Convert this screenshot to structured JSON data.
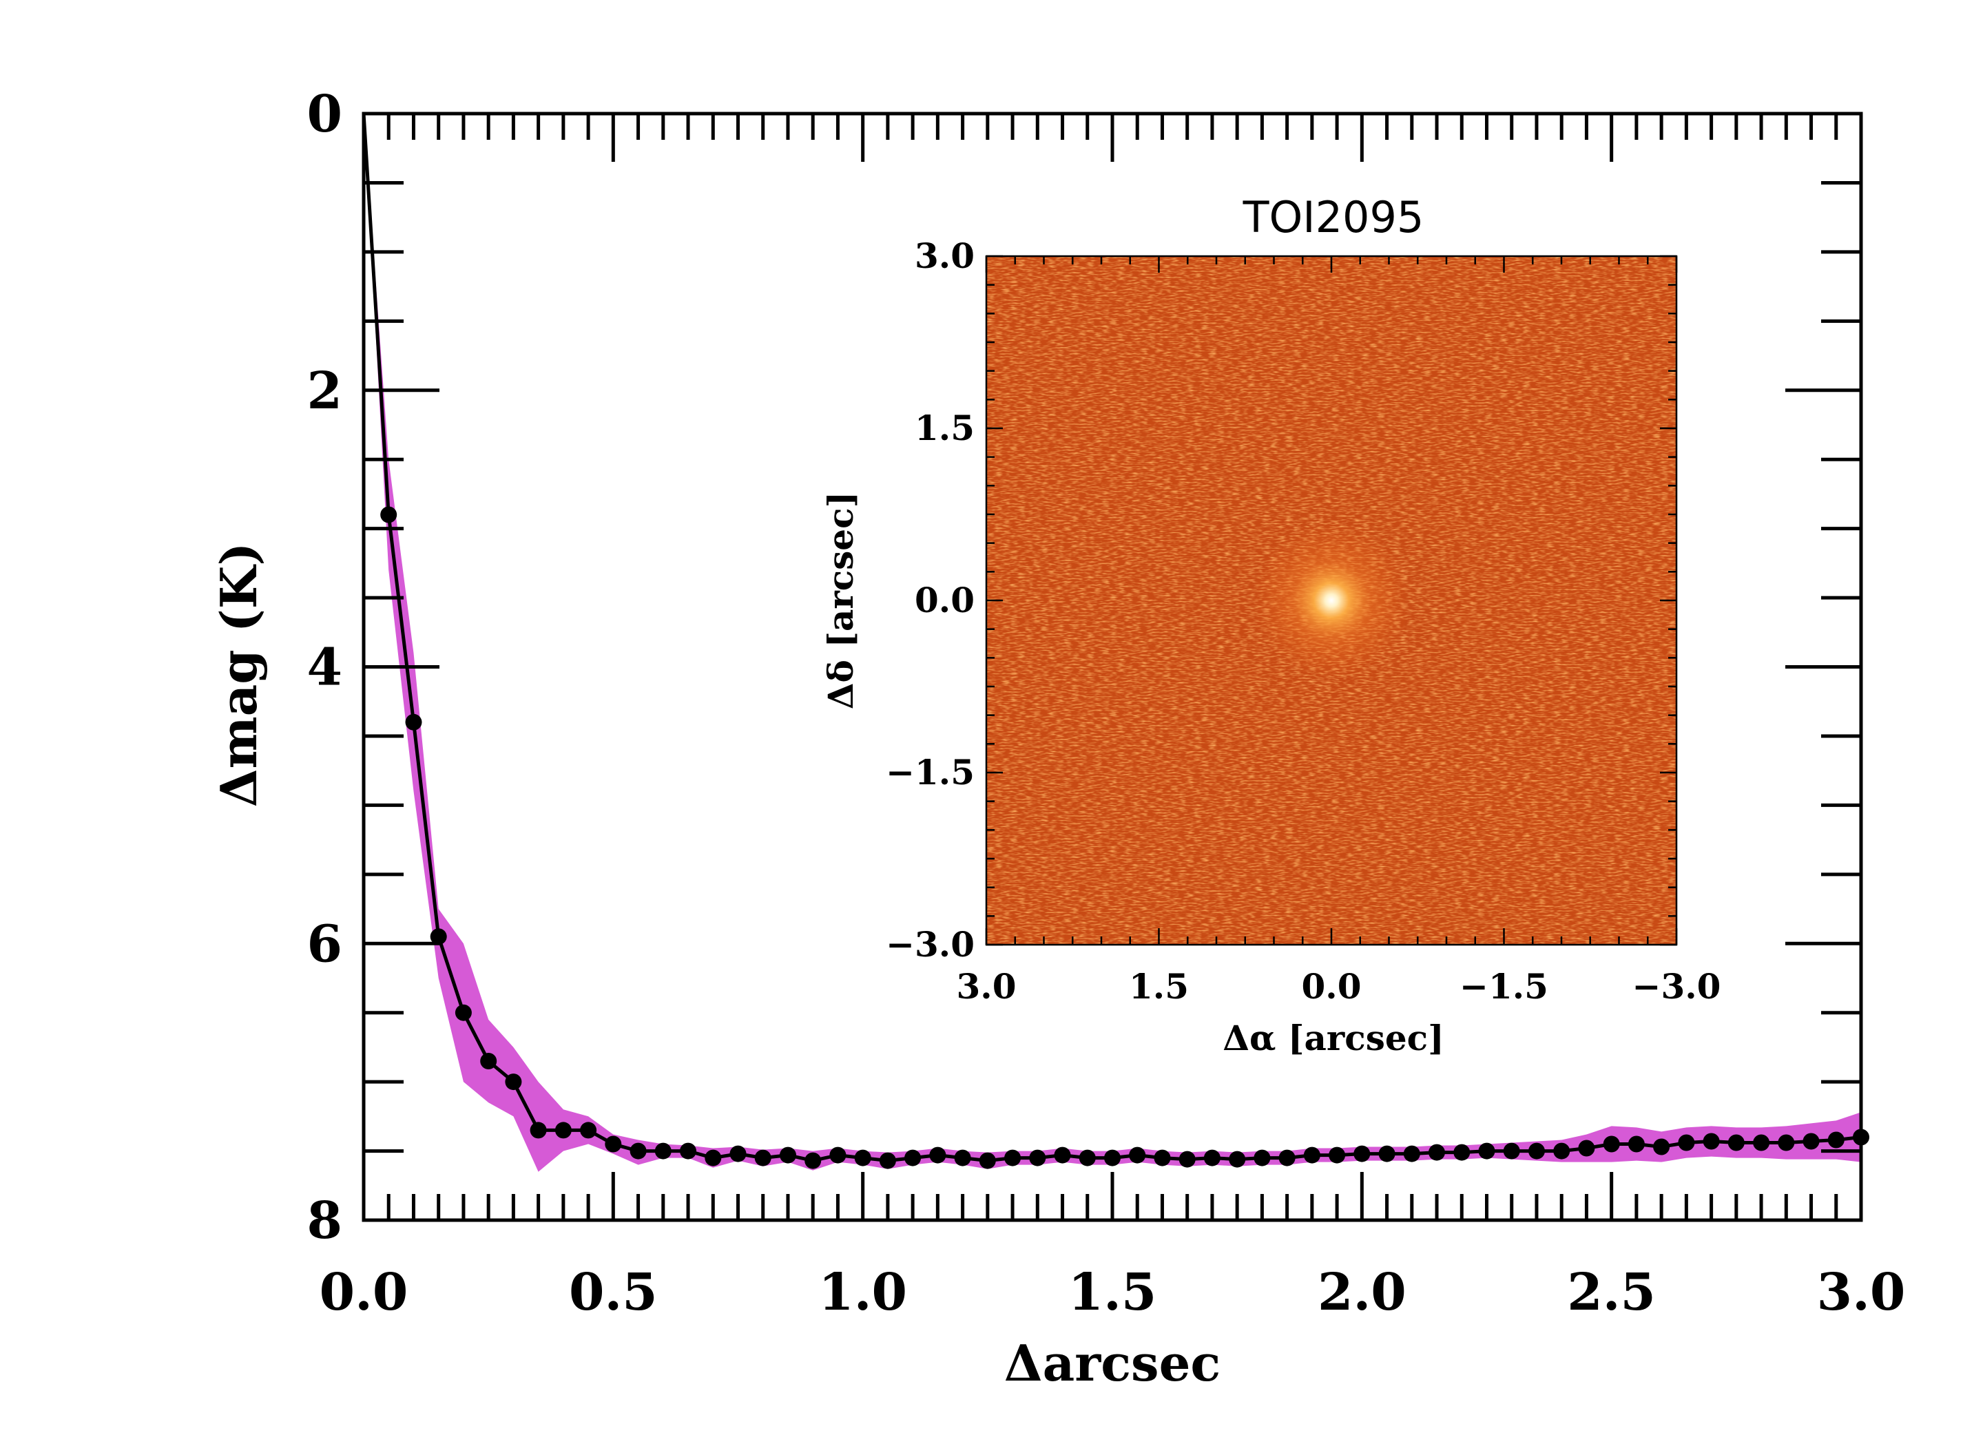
{
  "chart_data": {
    "type": "line",
    "xlabel": "Δarcsec",
    "ylabel": "Δmag (K)",
    "xlim": [
      0,
      3
    ],
    "ylim": [
      8,
      0
    ],
    "y_inverted": true,
    "xticks": [
      "0.0",
      "0.5",
      "1.0",
      "1.5",
      "2.0",
      "2.5",
      "3.0"
    ],
    "yticks": [
      "0",
      "2",
      "4",
      "6",
      "8"
    ],
    "grid": false,
    "band_color": "#d65ad6",
    "line_color": "#000000",
    "series": [
      {
        "x": [
          0,
          0.05,
          0.1,
          0.15,
          0.2,
          0.25,
          0.3,
          0.35,
          0.4,
          0.45,
          0.5,
          0.55,
          0.6,
          0.65,
          0.7,
          0.75,
          0.8,
          0.85,
          0.9,
          0.95,
          1.0,
          1.05,
          1.1,
          1.15,
          1.2,
          1.25,
          1.3,
          1.35,
          1.4,
          1.45,
          1.5,
          1.55,
          1.6,
          1.65,
          1.7,
          1.75,
          1.8,
          1.85,
          1.9,
          1.95,
          2.0,
          2.05,
          2.1,
          2.15,
          2.2,
          2.25,
          2.3,
          2.35,
          2.4,
          2.45,
          2.5,
          2.55,
          2.6,
          2.65,
          2.7,
          2.75,
          2.8,
          2.85,
          2.9,
          2.95,
          3.0
        ],
        "y": [
          0,
          2.9,
          4.4,
          5.95,
          6.5,
          6.85,
          7.0,
          7.35,
          7.35,
          7.35,
          7.45,
          7.5,
          7.5,
          7.5,
          7.55,
          7.52,
          7.55,
          7.53,
          7.57,
          7.53,
          7.55,
          7.57,
          7.55,
          7.53,
          7.55,
          7.57,
          7.55,
          7.55,
          7.53,
          7.55,
          7.55,
          7.53,
          7.55,
          7.56,
          7.55,
          7.56,
          7.55,
          7.55,
          7.53,
          7.53,
          7.52,
          7.52,
          7.52,
          7.51,
          7.51,
          7.5,
          7.5,
          7.5,
          7.5,
          7.48,
          7.45,
          7.45,
          7.47,
          7.44,
          7.43,
          7.44,
          7.44,
          7.44,
          7.43,
          7.42,
          7.4
        ],
        "band_lower": [
          0,
          2.5,
          3.9,
          5.75,
          6.0,
          6.55,
          6.75,
          7.0,
          7.2,
          7.25,
          7.38,
          7.42,
          7.45,
          7.46,
          7.48,
          7.47,
          7.49,
          7.48,
          7.5,
          7.48,
          7.5,
          7.51,
          7.5,
          7.48,
          7.5,
          7.51,
          7.5,
          7.5,
          7.48,
          7.5,
          7.5,
          7.48,
          7.5,
          7.51,
          7.5,
          7.51,
          7.5,
          7.5,
          7.48,
          7.48,
          7.47,
          7.47,
          7.47,
          7.46,
          7.46,
          7.45,
          7.44,
          7.43,
          7.42,
          7.38,
          7.32,
          7.33,
          7.36,
          7.33,
          7.32,
          7.33,
          7.33,
          7.32,
          7.3,
          7.28,
          7.22
        ],
        "band_upper": [
          0,
          3.3,
          4.9,
          6.25,
          7.0,
          7.15,
          7.25,
          7.65,
          7.5,
          7.45,
          7.52,
          7.6,
          7.55,
          7.55,
          7.62,
          7.57,
          7.61,
          7.58,
          7.64,
          7.58,
          7.6,
          7.63,
          7.6,
          7.58,
          7.6,
          7.63,
          7.6,
          7.6,
          7.58,
          7.6,
          7.6,
          7.58,
          7.6,
          7.61,
          7.6,
          7.61,
          7.6,
          7.6,
          7.58,
          7.58,
          7.57,
          7.57,
          7.57,
          7.56,
          7.56,
          7.55,
          7.56,
          7.57,
          7.58,
          7.58,
          7.58,
          7.57,
          7.58,
          7.55,
          7.54,
          7.55,
          7.55,
          7.56,
          7.56,
          7.56,
          7.58
        ]
      }
    ],
    "inset": {
      "type": "heatmap",
      "title": "TOI2095",
      "xlabel": "Δα [arcsec]",
      "ylabel": "Δδ [arcsec]",
      "xlim": [
        3.0,
        -3.0
      ],
      "ylim": [
        -3.0,
        3.0
      ],
      "xticks": [
        "3.0",
        "1.5",
        "0.0",
        "−1.5",
        "−3.0"
      ],
      "yticks": [
        "3.0",
        "1.5",
        "0.0",
        "−1.5",
        "−3.0"
      ],
      "background_color": "#c84a14",
      "peak_color": "#ffffff",
      "peak_position": [
        0.0,
        0.0
      ]
    }
  }
}
